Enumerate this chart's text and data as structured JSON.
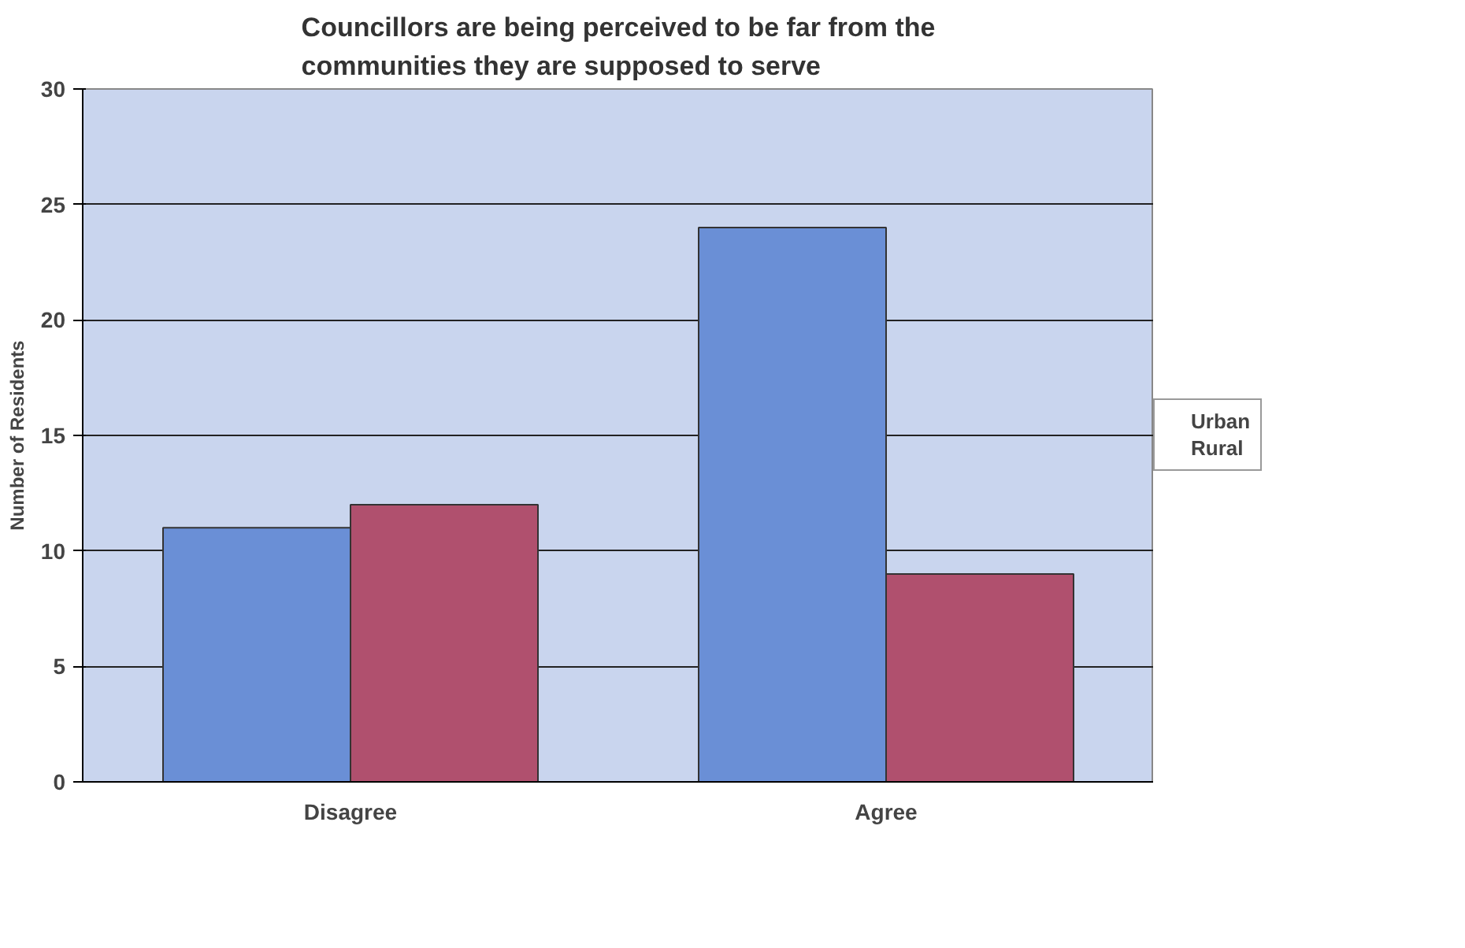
{
  "chart_data": {
    "type": "bar",
    "title": "Councillors are being perceived to be far from the communities they are supposed to serve",
    "ylabel": "Number of Residents",
    "categories": [
      "Disagree",
      "Agree"
    ],
    "series": [
      {
        "name": "Urban",
        "color": "#6a8fd6",
        "values": [
          11,
          24
        ]
      },
      {
        "name": "Rural",
        "color": "#b0506e",
        "values": [
          12,
          9
        ]
      }
    ],
    "ylim": [
      0,
      30
    ],
    "yticks": [
      0,
      5,
      10,
      15,
      20,
      25,
      30
    ],
    "grid": "y",
    "legend": "right"
  }
}
